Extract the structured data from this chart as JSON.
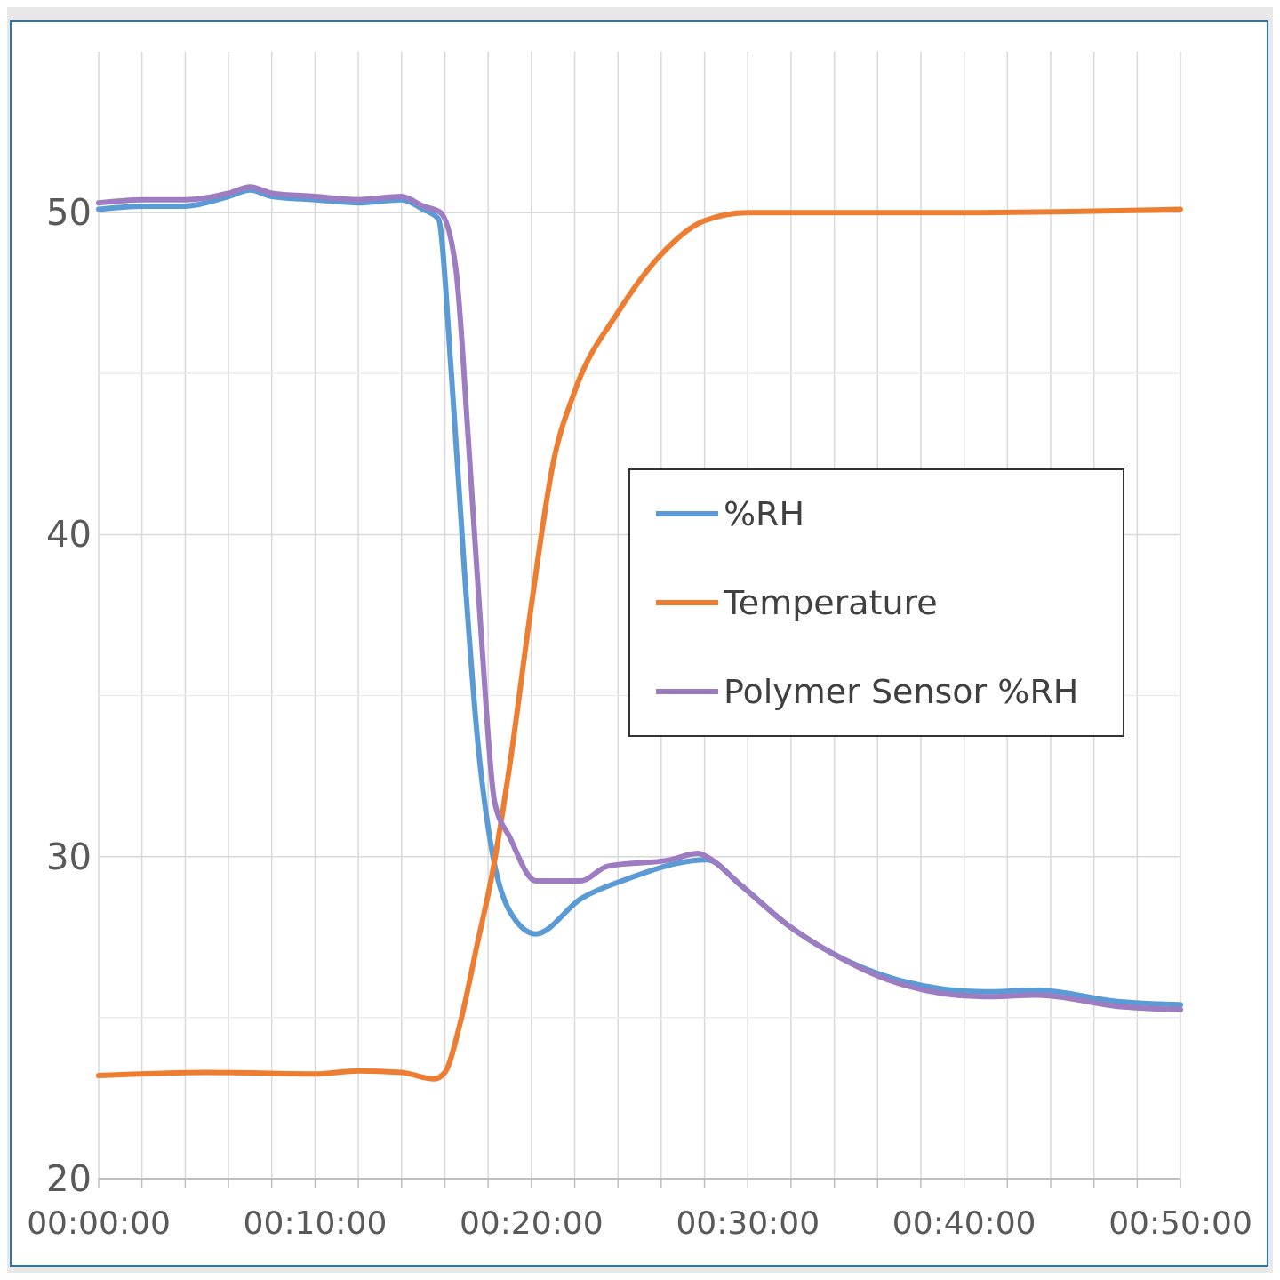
{
  "chart_data": {
    "type": "line",
    "xlim": [
      0,
      0.8333
    ],
    "ylim": [
      20,
      55
    ],
    "xticks": [
      {
        "value": 0,
        "label": "00:00:00"
      },
      {
        "value": 0.0333,
        "label": null
      },
      {
        "value": 0.0667,
        "label": null
      },
      {
        "value": 0.1,
        "label": null
      },
      {
        "value": 0.1333,
        "label": null
      },
      {
        "value": 0.1667,
        "label": "00:10:00"
      },
      {
        "value": 0.2,
        "label": null
      },
      {
        "value": 0.2333,
        "label": null
      },
      {
        "value": 0.2667,
        "label": null
      },
      {
        "value": 0.3,
        "label": null
      },
      {
        "value": 0.3333,
        "label": "00:20:00"
      },
      {
        "value": 0.3667,
        "label": null
      },
      {
        "value": 0.4,
        "label": null
      },
      {
        "value": 0.4333,
        "label": null
      },
      {
        "value": 0.4667,
        "label": null
      },
      {
        "value": 0.5,
        "label": "00:30:00"
      },
      {
        "value": 0.5333,
        "label": null
      },
      {
        "value": 0.5667,
        "label": null
      },
      {
        "value": 0.6,
        "label": null
      },
      {
        "value": 0.6333,
        "label": null
      },
      {
        "value": 0.6667,
        "label": "00:40:00"
      },
      {
        "value": 0.7,
        "label": null
      },
      {
        "value": 0.7333,
        "label": null
      },
      {
        "value": 0.7667,
        "label": null
      },
      {
        "value": 0.8,
        "label": null
      },
      {
        "value": 0.8333,
        "label": "00:50:00"
      }
    ],
    "yticks": [
      20,
      {
        "value": 25,
        "label": null
      },
      30,
      {
        "value": 35,
        "label": null
      },
      40,
      {
        "value": 45,
        "label": null
      },
      50
    ],
    "grid": true,
    "legend": "right",
    "marker": "none",
    "line_style": "solid",
    "series": [
      {
        "name": "%RH",
        "color": "#5b9bd5",
        "x": [
          0,
          0.0333,
          0.0667,
          0.1,
          0.1167,
          0.1333,
          0.1667,
          0.2,
          0.2333,
          0.25,
          0.2617,
          0.2717,
          0.2817,
          0.2917,
          0.3033,
          0.3167,
          0.3367,
          0.3717,
          0.4067,
          0.4683,
          0.495,
          0.53,
          0.565,
          0.6133,
          0.6817,
          0.7233,
          0.785,
          0.8333
        ],
        "values": [
          50.1,
          50.2,
          50.2,
          50.5,
          50.7,
          50.5,
          50.4,
          50.3,
          50.4,
          50.1,
          49.8,
          45,
          38.9,
          33.7,
          30.1,
          28.3,
          27.6,
          28.7,
          29.3,
          29.9,
          29.1,
          27.9,
          27.0,
          26.2,
          25.8,
          25.85,
          25.5,
          25.4
        ]
      },
      {
        "name": "Temperature",
        "color": "#ed7d31",
        "x": [
          0,
          0.0833,
          0.1667,
          0.2,
          0.2333,
          0.2583,
          0.2667,
          0.2783,
          0.2917,
          0.3033,
          0.3167,
          0.3333,
          0.35,
          0.3667,
          0.4,
          0.4333,
          0.4667,
          0.5,
          0.5667,
          0.6667,
          0.8333
        ],
        "values": [
          23.2,
          23.3,
          23.25,
          23.35,
          23.3,
          23.1,
          23.3,
          24.8,
          27.3,
          29.5,
          32.85,
          37.8,
          42.2,
          44.45,
          46.9,
          48.7,
          49.75,
          50.0,
          50.0,
          50.0,
          50.1
        ]
      },
      {
        "name": "Polymer Sensor %RH",
        "color": "#9e7cc1",
        "x": [
          0,
          0.0333,
          0.0667,
          0.1,
          0.1167,
          0.1333,
          0.1667,
          0.2,
          0.2333,
          0.25,
          0.2633,
          0.275,
          0.285,
          0.295,
          0.305,
          0.3167,
          0.3367,
          0.3717,
          0.3917,
          0.44,
          0.4617,
          0.4683,
          0.495,
          0.53,
          0.565,
          0.6133,
          0.6817,
          0.7233,
          0.785,
          0.8333
        ],
        "values": [
          50.3,
          50.4,
          50.4,
          50.6,
          50.8,
          50.6,
          50.5,
          50.4,
          50.5,
          50.2,
          50.0,
          48.3,
          42.8,
          36.7,
          31.7,
          30.6,
          29.25,
          29.25,
          29.7,
          29.9,
          30.1,
          30.0,
          29.1,
          27.9,
          27.0,
          26.1,
          25.65,
          25.7,
          25.35,
          25.25
        ]
      }
    ]
  }
}
